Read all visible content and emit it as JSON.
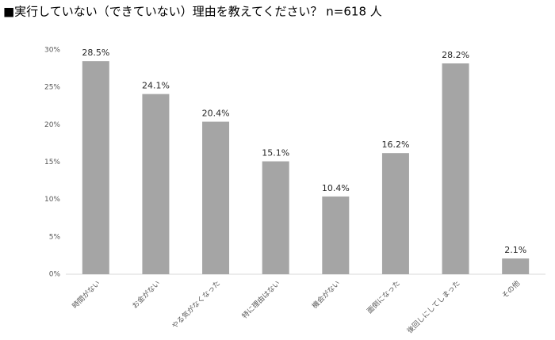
{
  "chart_data": {
    "type": "bar",
    "title": "■実行していない（できていない）理由を教えてください？ n=618 人",
    "categories": [
      "時間がない",
      "お金がない",
      "やる気がなくなった",
      "特に理由はない",
      "機会がない",
      "面倒になった",
      "後回しにしてしまった",
      "その他"
    ],
    "values": [
      28.5,
      24.1,
      20.4,
      15.1,
      10.4,
      16.2,
      28.2,
      2.1
    ],
    "value_labels": [
      "28.5%",
      "24.1%",
      "20.4%",
      "15.1%",
      "10.4%",
      "16.2%",
      "28.2%",
      "2.1%"
    ],
    "color": "#a5a5a5",
    "ylim": [
      0,
      30
    ],
    "yticks": [
      {
        "value": 0,
        "label": "0%"
      },
      {
        "value": 5,
        "label": "5%"
      },
      {
        "value": 10,
        "label": "10%"
      },
      {
        "value": 15,
        "label": "15%"
      },
      {
        "value": 20,
        "label": "20%"
      },
      {
        "value": 25,
        "label": "25%"
      },
      {
        "value": 30,
        "label": "30%"
      }
    ]
  }
}
